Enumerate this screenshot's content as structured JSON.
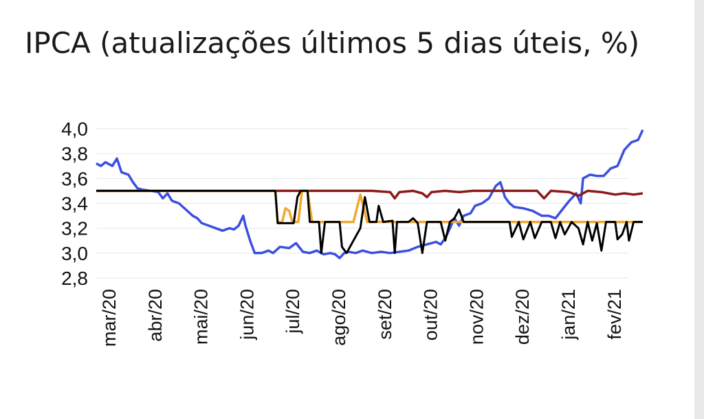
{
  "chart_data": {
    "type": "line",
    "title": "IPCA (atualizações últimos 5 dias úteis, %)",
    "xlabel": "",
    "ylabel": "",
    "ylim": [
      2.8,
      4.0
    ],
    "yticks": [
      "4,0",
      "3,8",
      "3,6",
      "3,4",
      "3,2",
      "3,0",
      "2,8"
    ],
    "xticks": [
      "mar/20",
      "abr/20",
      "mai/20",
      "jun/20",
      "jul/20",
      "ago/20",
      "set/20",
      "out/20",
      "nov/20",
      "dez/20",
      "jan/21",
      "fev/21"
    ],
    "x_range_months": [
      0,
      11.9
    ],
    "grid": true,
    "legend": "none",
    "series": [
      {
        "color": "#3b4fe0",
        "points": [
          [
            0,
            3.72
          ],
          [
            0.1,
            3.7
          ],
          [
            0.2,
            3.73
          ],
          [
            0.35,
            3.7
          ],
          [
            0.45,
            3.76
          ],
          [
            0.55,
            3.65
          ],
          [
            0.7,
            3.63
          ],
          [
            0.8,
            3.57
          ],
          [
            0.9,
            3.52
          ],
          [
            1.0,
            3.51
          ],
          [
            1.2,
            3.5
          ],
          [
            1.35,
            3.49
          ],
          [
            1.45,
            3.44
          ],
          [
            1.55,
            3.48
          ],
          [
            1.65,
            3.42
          ],
          [
            1.8,
            3.4
          ],
          [
            1.95,
            3.35
          ],
          [
            2.1,
            3.3
          ],
          [
            2.2,
            3.28
          ],
          [
            2.3,
            3.24
          ],
          [
            2.45,
            3.22
          ],
          [
            2.6,
            3.2
          ],
          [
            2.75,
            3.18
          ],
          [
            2.9,
            3.2
          ],
          [
            3.0,
            3.19
          ],
          [
            3.1,
            3.22
          ],
          [
            3.2,
            3.3
          ],
          [
            3.25,
            3.22
          ],
          [
            3.35,
            3.1
          ],
          [
            3.45,
            3.0
          ],
          [
            3.6,
            3.0
          ],
          [
            3.75,
            3.02
          ],
          [
            3.85,
            3.0
          ],
          [
            4.0,
            3.05
          ],
          [
            4.2,
            3.04
          ],
          [
            4.35,
            3.08
          ],
          [
            4.5,
            3.01
          ],
          [
            4.65,
            3.0
          ],
          [
            4.8,
            3.02
          ],
          [
            4.95,
            2.99
          ],
          [
            5.1,
            3.0
          ],
          [
            5.2,
            2.99
          ],
          [
            5.3,
            2.96
          ],
          [
            5.4,
            3.0
          ],
          [
            5.5,
            3.01
          ],
          [
            5.65,
            3.0
          ],
          [
            5.8,
            3.02
          ],
          [
            6.0,
            3.0
          ],
          [
            6.2,
            3.01
          ],
          [
            6.4,
            3.0
          ],
          [
            6.6,
            3.01
          ],
          [
            6.8,
            3.02
          ],
          [
            7.0,
            3.05
          ],
          [
            7.2,
            3.07
          ],
          [
            7.4,
            3.09
          ],
          [
            7.5,
            3.07
          ],
          [
            7.6,
            3.12
          ],
          [
            7.7,
            3.2
          ],
          [
            7.8,
            3.28
          ],
          [
            7.9,
            3.22
          ],
          [
            8.0,
            3.3
          ],
          [
            8.15,
            3.32
          ],
          [
            8.25,
            3.38
          ],
          [
            8.4,
            3.4
          ],
          [
            8.55,
            3.44
          ],
          [
            8.7,
            3.54
          ],
          [
            8.8,
            3.57
          ],
          [
            8.9,
            3.45
          ],
          [
            9.0,
            3.4
          ],
          [
            9.1,
            3.37
          ],
          [
            9.3,
            3.36
          ],
          [
            9.5,
            3.34
          ],
          [
            9.7,
            3.3
          ],
          [
            9.85,
            3.3
          ],
          [
            10.0,
            3.28
          ],
          [
            10.15,
            3.35
          ],
          [
            10.3,
            3.42
          ],
          [
            10.45,
            3.48
          ],
          [
            10.55,
            3.4
          ],
          [
            10.6,
            3.6
          ],
          [
            10.75,
            3.63
          ],
          [
            10.9,
            3.62
          ],
          [
            11.05,
            3.62
          ],
          [
            11.2,
            3.68
          ],
          [
            11.35,
            3.7
          ],
          [
            11.5,
            3.83
          ],
          [
            11.65,
            3.89
          ],
          [
            11.8,
            3.91
          ],
          [
            11.9,
            3.99
          ]
        ]
      },
      {
        "color": "#8b1a1a",
        "points": [
          [
            0,
            3.5
          ],
          [
            3.9,
            3.5
          ],
          [
            4.2,
            3.5
          ],
          [
            4.6,
            3.5
          ],
          [
            5.0,
            3.5
          ],
          [
            5.5,
            3.5
          ],
          [
            6.0,
            3.5
          ],
          [
            6.4,
            3.49
          ],
          [
            6.5,
            3.44
          ],
          [
            6.6,
            3.49
          ],
          [
            6.9,
            3.5
          ],
          [
            7.1,
            3.48
          ],
          [
            7.2,
            3.45
          ],
          [
            7.3,
            3.49
          ],
          [
            7.6,
            3.5
          ],
          [
            7.9,
            3.49
          ],
          [
            8.2,
            3.5
          ],
          [
            8.6,
            3.5
          ],
          [
            8.9,
            3.5
          ],
          [
            9.2,
            3.5
          ],
          [
            9.6,
            3.5
          ],
          [
            9.75,
            3.44
          ],
          [
            9.9,
            3.5
          ],
          [
            10.3,
            3.49
          ],
          [
            10.5,
            3.46
          ],
          [
            10.7,
            3.5
          ],
          [
            11.0,
            3.49
          ],
          [
            11.3,
            3.47
          ],
          [
            11.5,
            3.48
          ],
          [
            11.7,
            3.47
          ],
          [
            11.9,
            3.48
          ]
        ]
      },
      {
        "color": "#f0a830",
        "points": [
          [
            0,
            3.5
          ],
          [
            3.9,
            3.5
          ],
          [
            3.95,
            3.25
          ],
          [
            4.05,
            3.25
          ],
          [
            4.12,
            3.36
          ],
          [
            4.2,
            3.34
          ],
          [
            4.27,
            3.25
          ],
          [
            4.4,
            3.25
          ],
          [
            4.48,
            3.5
          ],
          [
            4.6,
            3.5
          ],
          [
            4.7,
            3.25
          ],
          [
            5.6,
            3.25
          ],
          [
            5.75,
            3.47
          ],
          [
            5.9,
            3.25
          ],
          [
            11.9,
            3.25
          ]
        ]
      },
      {
        "color": "#000000",
        "points": [
          [
            0,
            3.5
          ],
          [
            3.9,
            3.5
          ],
          [
            3.95,
            3.24
          ],
          [
            4.3,
            3.24
          ],
          [
            4.38,
            3.45
          ],
          [
            4.45,
            3.5
          ],
          [
            4.6,
            3.5
          ],
          [
            4.65,
            3.25
          ],
          [
            4.85,
            3.25
          ],
          [
            4.9,
            3.0
          ],
          [
            4.98,
            3.25
          ],
          [
            5.3,
            3.25
          ],
          [
            5.35,
            3.05
          ],
          [
            5.45,
            3.0
          ],
          [
            5.6,
            3.1
          ],
          [
            5.75,
            3.2
          ],
          [
            5.85,
            3.45
          ],
          [
            5.95,
            3.25
          ],
          [
            6.1,
            3.25
          ],
          [
            6.15,
            3.38
          ],
          [
            6.25,
            3.25
          ],
          [
            6.45,
            3.26
          ],
          [
            6.5,
            3.0
          ],
          [
            6.55,
            3.25
          ],
          [
            6.8,
            3.25
          ],
          [
            6.9,
            3.28
          ],
          [
            7.0,
            3.24
          ],
          [
            7.1,
            3.0
          ],
          [
            7.2,
            3.25
          ],
          [
            7.5,
            3.25
          ],
          [
            7.6,
            3.1
          ],
          [
            7.7,
            3.25
          ],
          [
            7.8,
            3.28
          ],
          [
            7.9,
            3.35
          ],
          [
            8.0,
            3.25
          ],
          [
            8.4,
            3.25
          ],
          [
            8.7,
            3.25
          ],
          [
            9.0,
            3.25
          ],
          [
            9.05,
            3.13
          ],
          [
            9.2,
            3.25
          ],
          [
            9.3,
            3.11
          ],
          [
            9.45,
            3.25
          ],
          [
            9.55,
            3.12
          ],
          [
            9.7,
            3.25
          ],
          [
            9.9,
            3.25
          ],
          [
            10.0,
            3.12
          ],
          [
            10.1,
            3.25
          ],
          [
            10.2,
            3.15
          ],
          [
            10.35,
            3.25
          ],
          [
            10.5,
            3.2
          ],
          [
            10.6,
            3.07
          ],
          [
            10.7,
            3.25
          ],
          [
            10.8,
            3.1
          ],
          [
            10.9,
            3.24
          ],
          [
            11.0,
            3.02
          ],
          [
            11.1,
            3.25
          ],
          [
            11.3,
            3.25
          ],
          [
            11.35,
            3.11
          ],
          [
            11.45,
            3.15
          ],
          [
            11.55,
            3.25
          ],
          [
            11.6,
            3.1
          ],
          [
            11.7,
            3.25
          ],
          [
            11.9,
            3.25
          ]
        ]
      }
    ]
  }
}
